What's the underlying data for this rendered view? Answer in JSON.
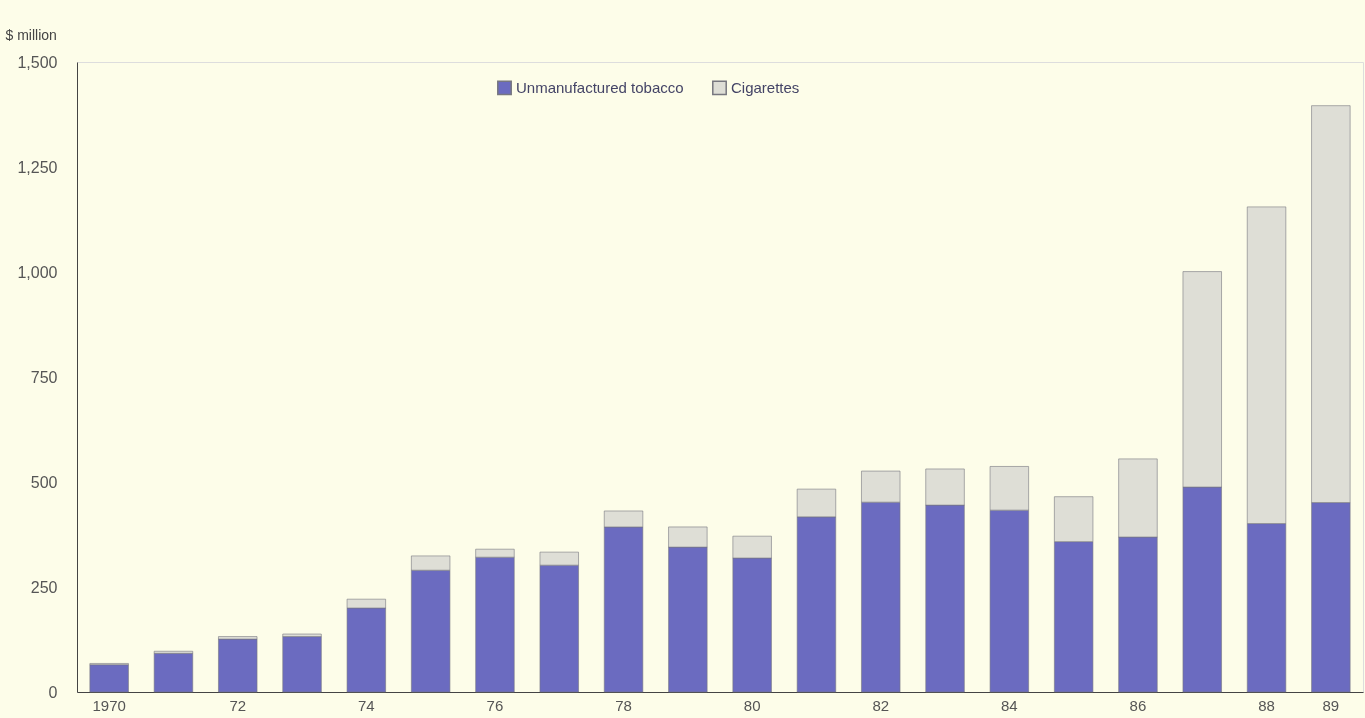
{
  "chart_data": {
    "type": "bar",
    "ylabel": "$ million",
    "stacked": true,
    "legend": "top",
    "grid": false,
    "categories": [
      "1970",
      null,
      "72",
      null,
      "74",
      null,
      "76",
      null,
      "78",
      null,
      "80",
      null,
      "82",
      null,
      "84",
      null,
      "86",
      null,
      "88",
      "89"
    ],
    "series": [
      {
        "name": "Unmanufactured tobacco",
        "color": "#6b6bc0",
        "values": [
          65,
          92,
          126,
          132,
          200,
          290,
          321,
          302,
          393,
          345,
          319,
          417,
          452,
          445,
          433,
          358,
          369,
          488,
          401,
          451
        ]
      },
      {
        "name": "Cigarettes",
        "color": "#deded6",
        "values": [
          3,
          5,
          6,
          6,
          21,
          34,
          19,
          31,
          38,
          48,
          52,
          66,
          74,
          86,
          104,
          107,
          186,
          513,
          754,
          945
        ]
      }
    ],
    "ylim": [
      0,
      1500
    ],
    "yticks": [
      0,
      250,
      500,
      750,
      {
        "value": 1000,
        "label": "1,000"
      },
      {
        "value": 1250,
        "label": "1,250"
      },
      {
        "value": 1500,
        "label": "1,500"
      }
    ]
  }
}
